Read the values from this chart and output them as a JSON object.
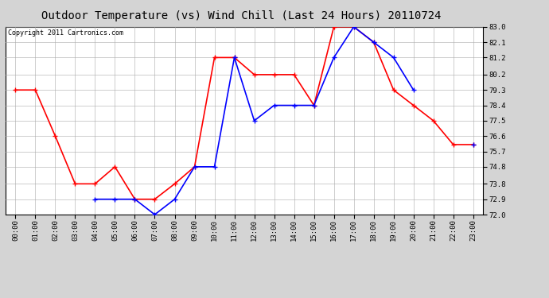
{
  "title": "Outdoor Temperature (vs) Wind Chill (Last 24 Hours) 20110724",
  "copyright": "Copyright 2011 Cartronics.com",
  "hours": [
    "00:00",
    "01:00",
    "02:00",
    "03:00",
    "04:00",
    "05:00",
    "06:00",
    "07:00",
    "08:00",
    "09:00",
    "10:00",
    "11:00",
    "12:00",
    "13:00",
    "14:00",
    "15:00",
    "16:00",
    "17:00",
    "18:00",
    "19:00",
    "20:00",
    "21:00",
    "22:00",
    "23:00"
  ],
  "temp": [
    79.3,
    79.3,
    76.6,
    73.8,
    73.8,
    74.8,
    72.9,
    72.9,
    73.8,
    74.8,
    81.2,
    81.2,
    80.2,
    80.2,
    80.2,
    78.4,
    83.0,
    83.0,
    82.1,
    79.3,
    78.4,
    77.5,
    76.1,
    76.1
  ],
  "wind_chill": [
    null,
    null,
    null,
    null,
    72.9,
    72.9,
    72.9,
    72.0,
    72.9,
    74.8,
    74.8,
    81.2,
    77.5,
    78.4,
    78.4,
    78.4,
    81.2,
    83.0,
    82.1,
    81.2,
    79.3,
    null,
    null,
    76.1
  ],
  "temp_color": "#ff0000",
  "wind_chill_color": "#0000ff",
  "background_color": "#d4d4d4",
  "plot_bg_color": "#ffffff",
  "grid_color": "#aaaaaa",
  "ylim": [
    72.0,
    83.0
  ],
  "yticks": [
    72.0,
    72.9,
    73.8,
    74.8,
    75.7,
    76.6,
    77.5,
    78.4,
    79.3,
    80.2,
    81.2,
    82.1,
    83.0
  ],
  "title_fontsize": 10,
  "copyright_fontsize": 6,
  "tick_fontsize": 6.5,
  "marker": "+",
  "markersize": 4,
  "linewidth": 1.2
}
